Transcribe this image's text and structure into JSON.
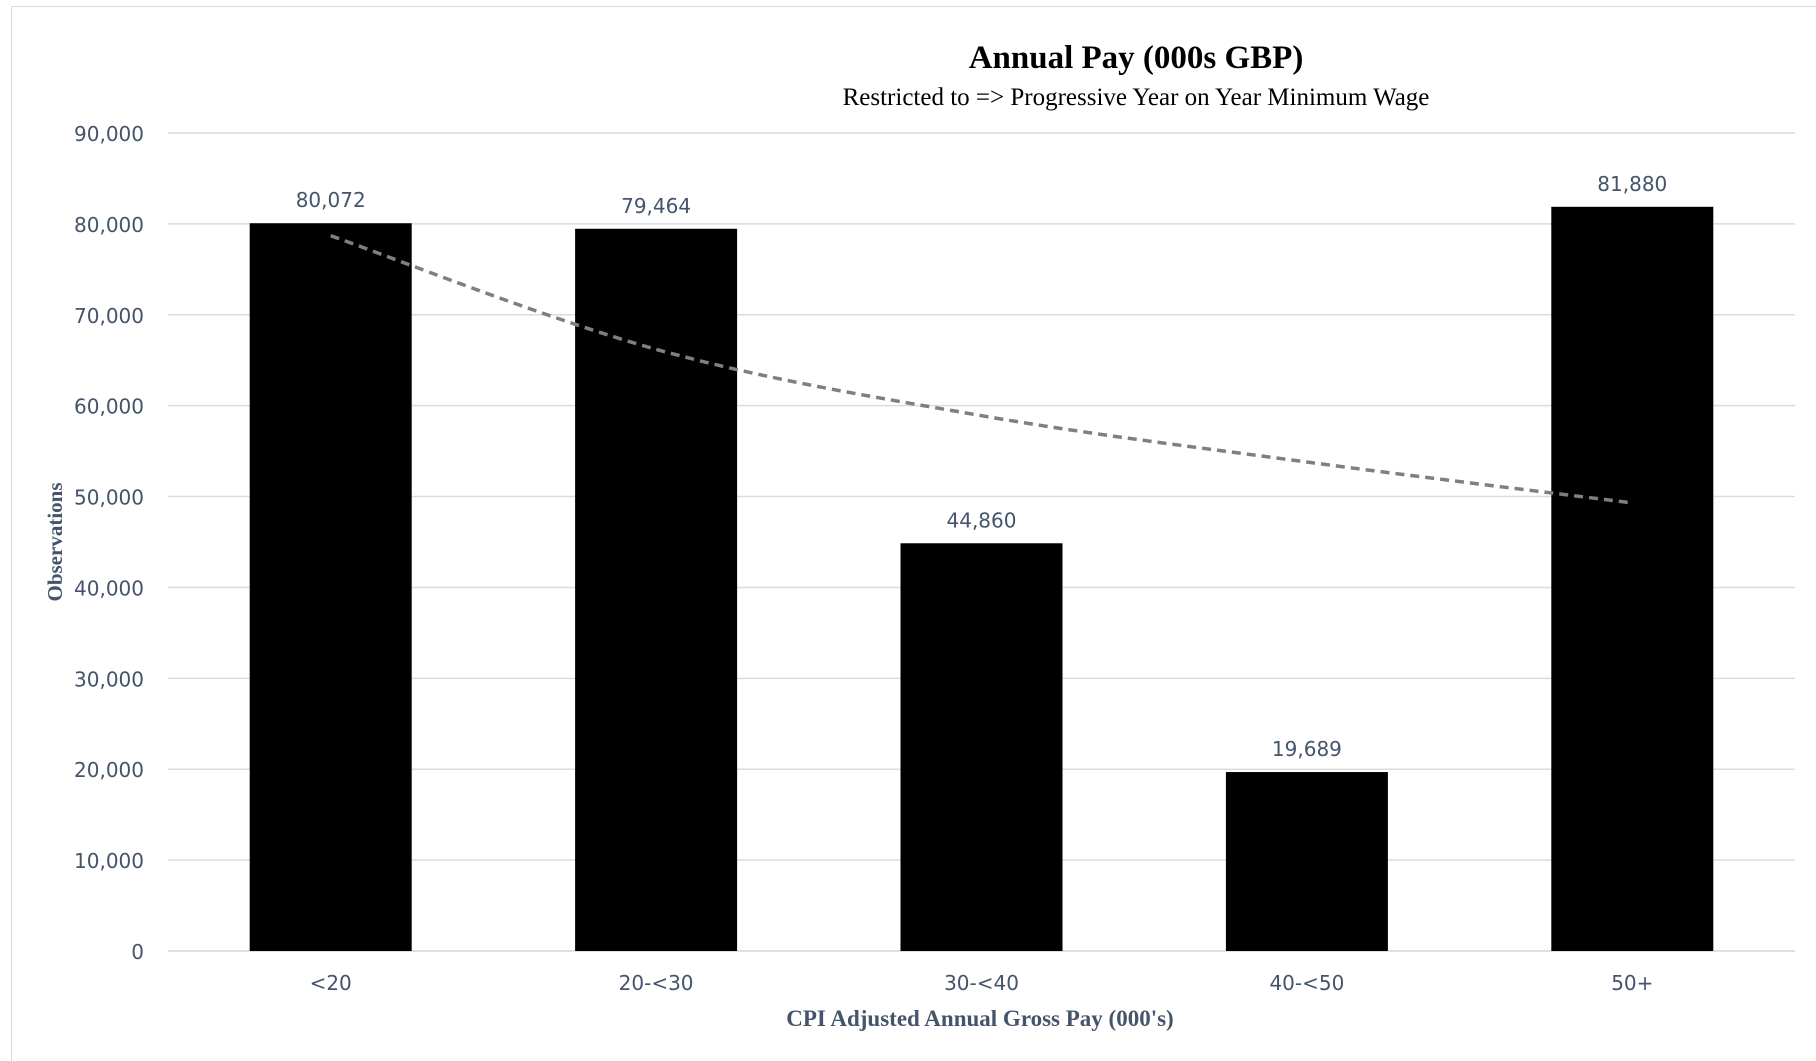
{
  "chart_data": {
    "type": "bar",
    "title": "Annual Pay (000s GBP)",
    "subtitle": "Restricted to => Progressive Year on Year Minimum Wage",
    "xlabel": "CPI Adjusted Annual Gross Pay (000's)",
    "ylabel": "Observations",
    "categories": [
      "<20",
      "20-<30",
      "30-<40",
      "40-<50",
      "50+"
    ],
    "values": [
      80072,
      79464,
      44860,
      19689,
      81880
    ],
    "data_labels": [
      "80,072",
      "79,464",
      "44,860",
      "19,689",
      "81,880"
    ],
    "ylim": [
      0,
      90000
    ],
    "y_ticks": [
      0,
      10000,
      20000,
      30000,
      40000,
      50000,
      60000,
      70000,
      80000,
      90000
    ],
    "y_tick_labels": [
      "0",
      "10,000",
      "20,000",
      "30,000",
      "40,000",
      "50,000",
      "60,000",
      "70,000",
      "80,000",
      "90,000"
    ],
    "grid": true,
    "legend": "none",
    "trendline": {
      "style": "dashed",
      "kind": "logarithmic",
      "values": [
        78700,
        66200,
        58900,
        53800,
        49300
      ]
    },
    "colors": {
      "bar": "#000000",
      "trendline": "#7f7f7f",
      "grid": "#d9dce6",
      "axis_text": "#44546a",
      "title": "#000000"
    }
  }
}
